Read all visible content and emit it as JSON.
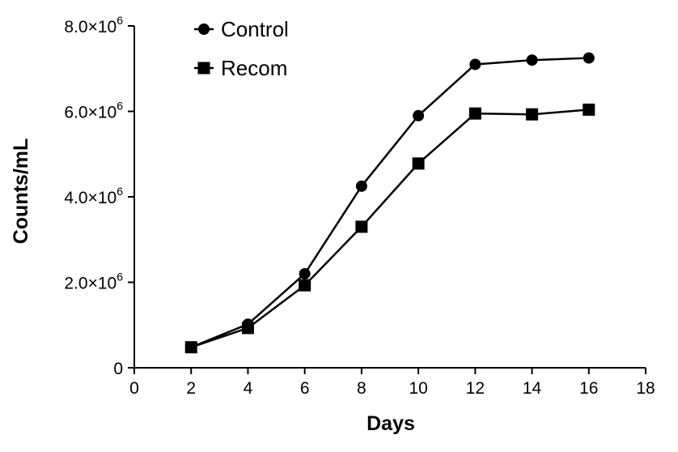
{
  "chart_data": {
    "type": "line",
    "title": "",
    "xlabel": "Days",
    "ylabel": "Counts/mL",
    "xlim": [
      0,
      18
    ],
    "ylim": [
      0,
      8000000
    ],
    "x_ticks": [
      0,
      2,
      4,
      6,
      8,
      10,
      12,
      14,
      16,
      18
    ],
    "y_ticks": [
      {
        "value": 0,
        "base": "0",
        "exp": ""
      },
      {
        "value": 2000000,
        "base": "2.0×10",
        "exp": "6"
      },
      {
        "value": 4000000,
        "base": "4.0×10",
        "exp": "6"
      },
      {
        "value": 6000000,
        "base": "6.0×10",
        "exp": "6"
      },
      {
        "value": 8000000,
        "base": "8.0×10",
        "exp": "6"
      }
    ],
    "grid": false,
    "legend_position": "top-left",
    "series": [
      {
        "name": "Control",
        "marker": "circle",
        "color": "#000000",
        "x": [
          2,
          4,
          6,
          8,
          10,
          12,
          14,
          16
        ],
        "y": [
          480000,
          1020000,
          2200000,
          4250000,
          5900000,
          7100000,
          7200000,
          7250000
        ]
      },
      {
        "name": "Recom",
        "marker": "square",
        "color": "#000000",
        "x": [
          2,
          4,
          6,
          8,
          10,
          12,
          14,
          16
        ],
        "y": [
          480000,
          930000,
          1930000,
          3300000,
          4780000,
          5950000,
          5930000,
          6040000
        ]
      }
    ]
  }
}
